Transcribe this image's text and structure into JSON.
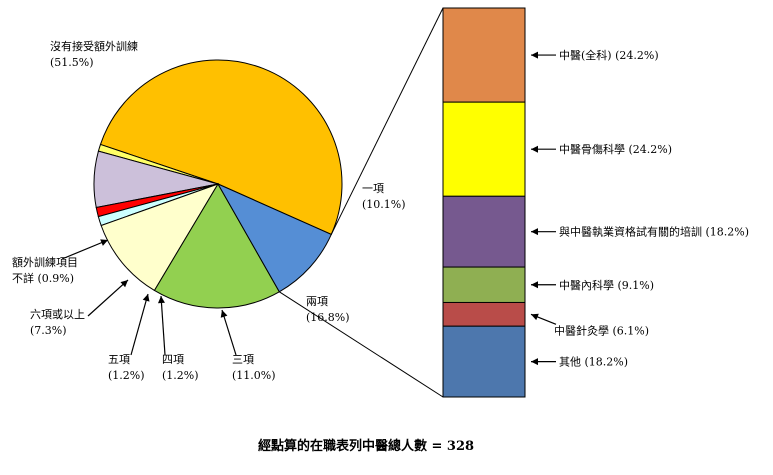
{
  "chart_data": [
    {
      "type": "pie",
      "series": [
        {
          "label": "沒有接受額外訓練",
          "pct_label": "(51.5%)",
          "value": 51.5,
          "color": "#ffc000"
        },
        {
          "label": "額外訓練項目不詳",
          "pct_label": "(0.9%)",
          "value": 0.9,
          "color": "#ffff66"
        },
        {
          "label": "六項或以上",
          "pct_label": "(7.3%)",
          "value": 7.3,
          "color": "#ccc0da"
        },
        {
          "label": "五項",
          "pct_label": "(1.2%)",
          "value": 1.2,
          "color": "#ff0000"
        },
        {
          "label": "四項",
          "pct_label": "(1.2%)",
          "value": 1.2,
          "color": "#ccffff"
        },
        {
          "label": "三項",
          "pct_label": "(11.0%)",
          "value": 11.0,
          "color": "#ffffcc"
        },
        {
          "label": "兩項",
          "pct_label": "(16.8%)",
          "value": 16.8,
          "color": "#92d050"
        },
        {
          "label": "一項",
          "pct_label": "(10.1%)",
          "value": 10.1,
          "color": "#558ed5"
        }
      ]
    },
    {
      "type": "bar",
      "stacked": true,
      "segments": [
        {
          "label": "中醫(全科)",
          "pct_label": "(24.2%)",
          "value": 24.2,
          "color": "#e0884a"
        },
        {
          "label": "中醫骨傷科學",
          "pct_label": "(24.2%)",
          "value": 24.2,
          "color": "#ffff00"
        },
        {
          "label": "與中醫執業資格試有關的培訓",
          "pct_label": "(18.2%)",
          "value": 18.2,
          "color": "#76598f"
        },
        {
          "label": "中醫內科學",
          "pct_label": "(9.1%)",
          "value": 9.1,
          "color": "#8faf52"
        },
        {
          "label": "中醫針灸學",
          "pct_label": "(6.1%)",
          "value": 6.1,
          "color": "#b94c49"
        },
        {
          "label": "其他",
          "pct_label": "(18.2%)",
          "value": 18.2,
          "color": "#4d77ad"
        }
      ]
    }
  ],
  "footnote": "經點算的在職表列中醫總人數  = 328"
}
